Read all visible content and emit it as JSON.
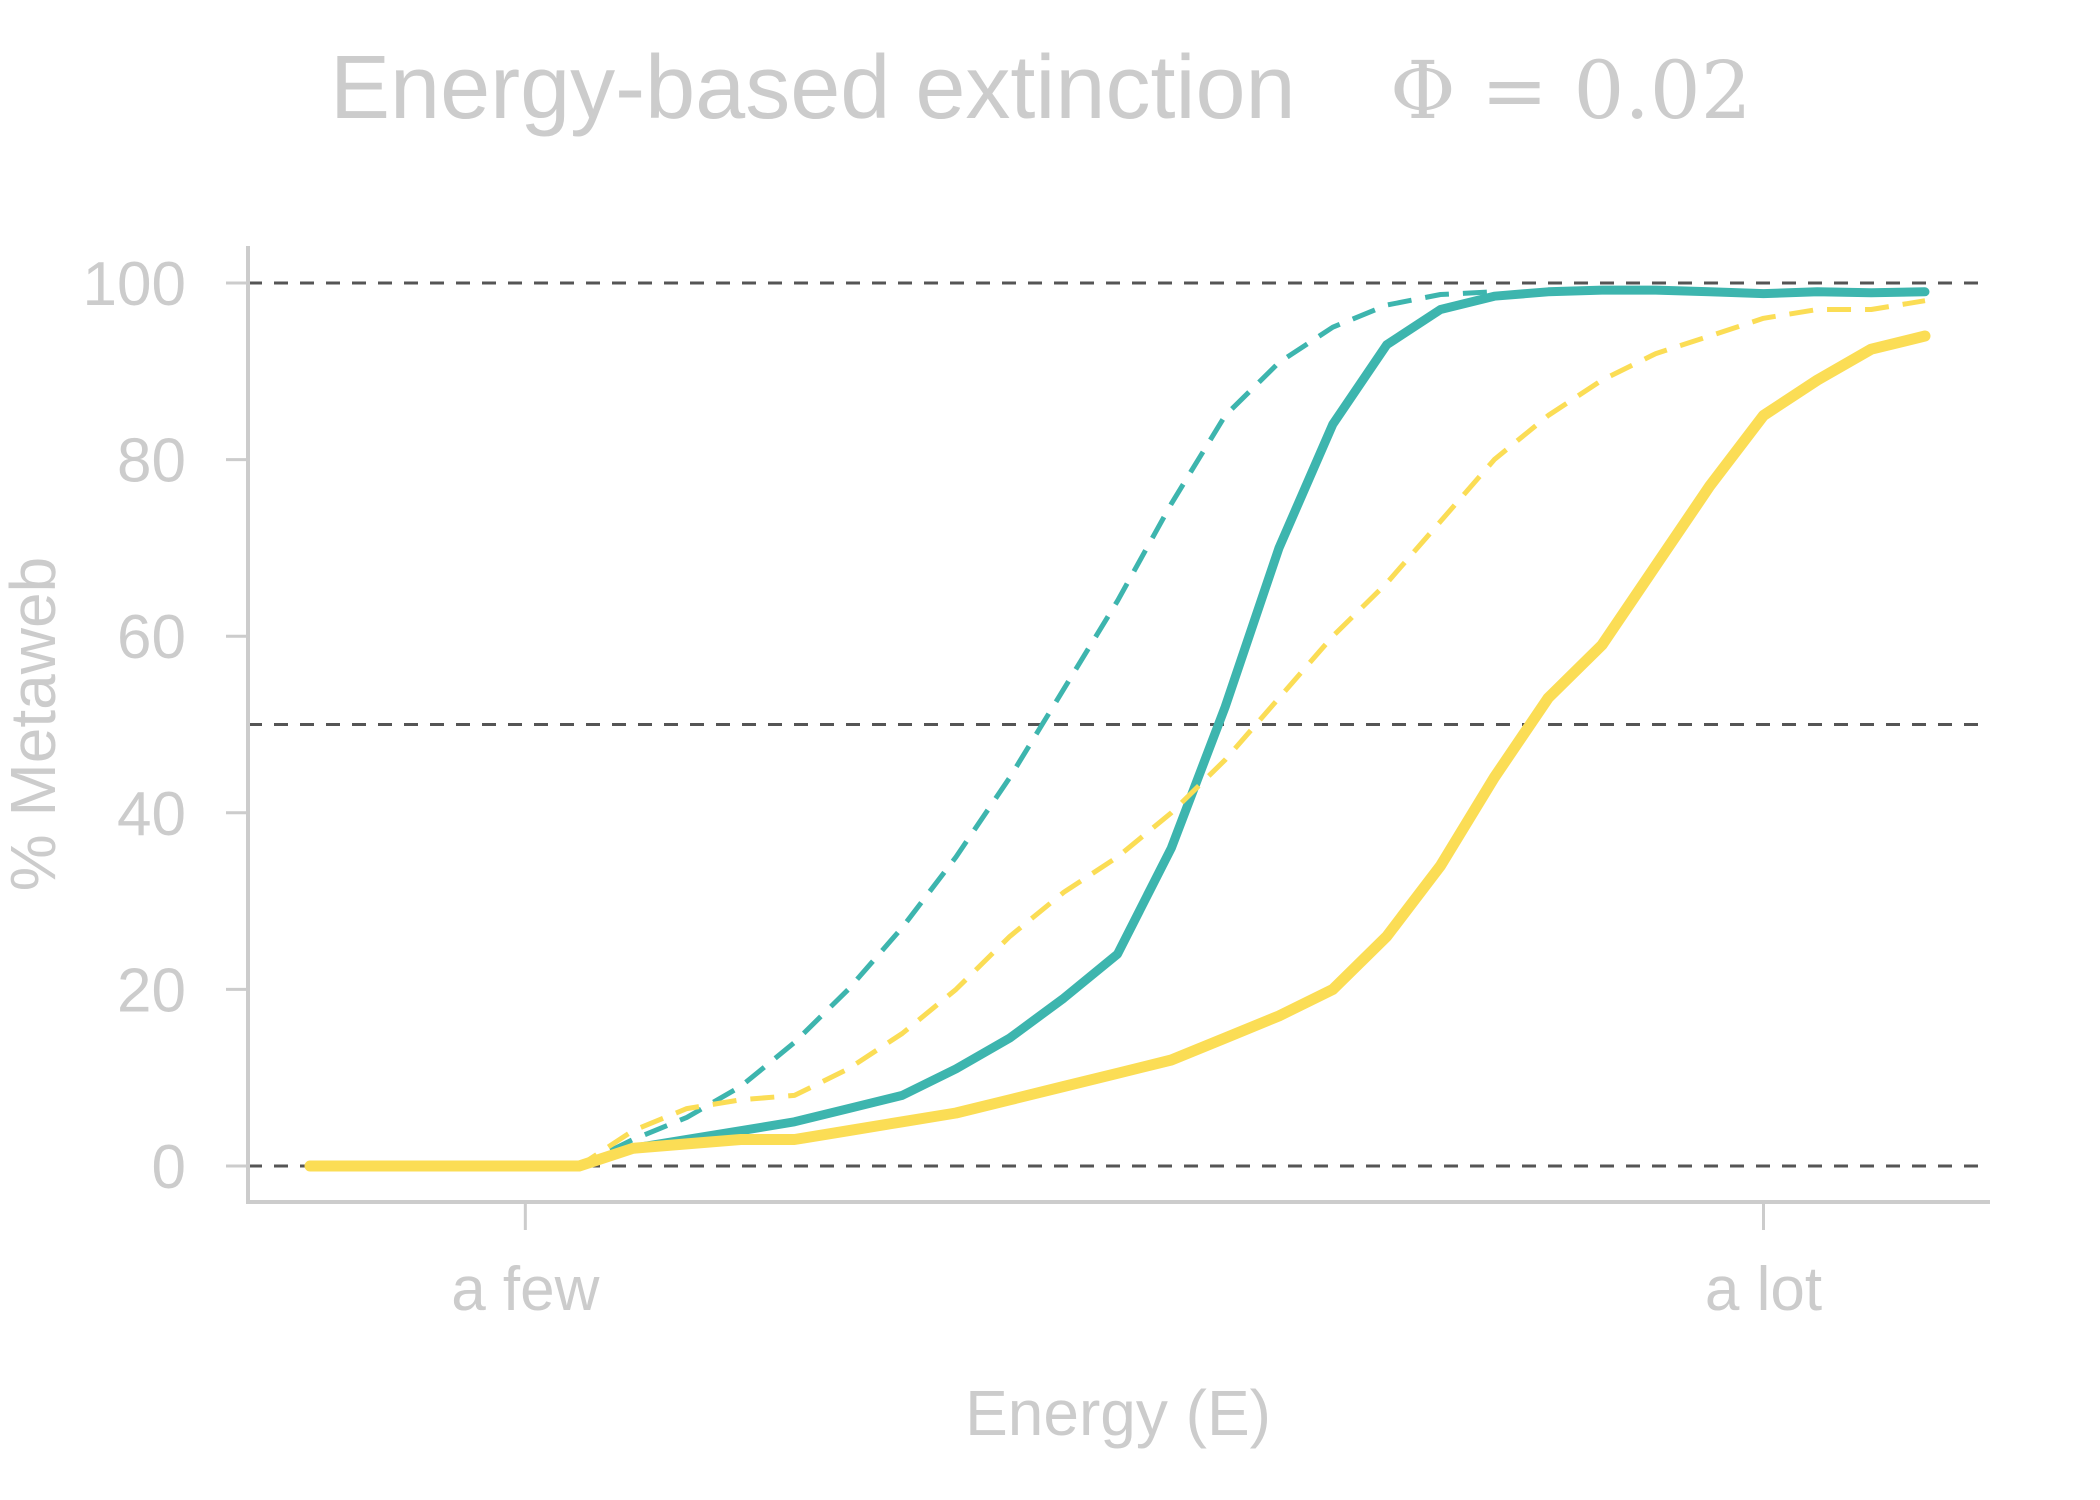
{
  "chart_data": {
    "type": "line",
    "title": "Energy-based extinction",
    "title_param": "Φ = 0.02",
    "xlabel": "Energy (E)",
    "ylabel": "% Metaweb",
    "ylim": [
      0,
      100
    ],
    "yticks": [
      0,
      20,
      40,
      60,
      80,
      100
    ],
    "x_range": [
      0,
      30
    ],
    "xtick_positions": [
      4,
      27
    ],
    "xtick_labels": [
      "a few",
      "a lot"
    ],
    "reference_lines": [
      0,
      50,
      100
    ],
    "grid": false,
    "x": [
      0,
      1,
      2,
      3,
      4,
      5,
      6,
      7,
      8,
      9,
      10,
      11,
      12,
      13,
      14,
      15,
      16,
      17,
      18,
      19,
      20,
      21,
      22,
      23,
      24,
      25,
      26,
      27,
      28,
      29,
      30
    ],
    "series": [
      {
        "color": "#3db5ae",
        "style": "solid",
        "width": 9,
        "values": [
          0,
          0,
          0,
          0,
          0,
          0,
          2,
          3,
          4,
          5,
          6.5,
          8,
          11,
          14.5,
          19,
          24,
          36,
          52,
          70,
          84,
          93,
          97,
          98.5,
          99,
          99.2,
          99.2,
          99,
          98.8,
          99,
          98.9,
          99
        ]
      },
      {
        "color": "#3db5ae",
        "style": "dashed",
        "width": 5,
        "values": [
          0,
          0,
          0,
          0,
          0,
          0,
          3,
          5.5,
          9,
          14,
          20,
          27,
          35,
          44,
          54,
          64,
          75,
          85,
          91,
          95,
          97.5,
          98.7,
          99,
          null,
          null,
          null,
          null,
          null,
          null,
          null,
          null
        ]
      },
      {
        "color": "#fbdd55",
        "style": "solid",
        "width": 11,
        "values": [
          0,
          0,
          0,
          0,
          0,
          0,
          2,
          2.5,
          3,
          3,
          4,
          5,
          6,
          7.5,
          9,
          10.5,
          12,
          14.5,
          17,
          20,
          26,
          34,
          44,
          53,
          59,
          68,
          77,
          85,
          89,
          92.5,
          94
        ]
      },
      {
        "color": "#fbdd55",
        "style": "dashed",
        "width": 5,
        "values": [
          0,
          0,
          0,
          0,
          0,
          0,
          4,
          6.5,
          7.5,
          8,
          11,
          15,
          20,
          26,
          31,
          35,
          40,
          46,
          53,
          60,
          66,
          73,
          80,
          85,
          89,
          92,
          94,
          96,
          97,
          97,
          98
        ]
      }
    ]
  }
}
